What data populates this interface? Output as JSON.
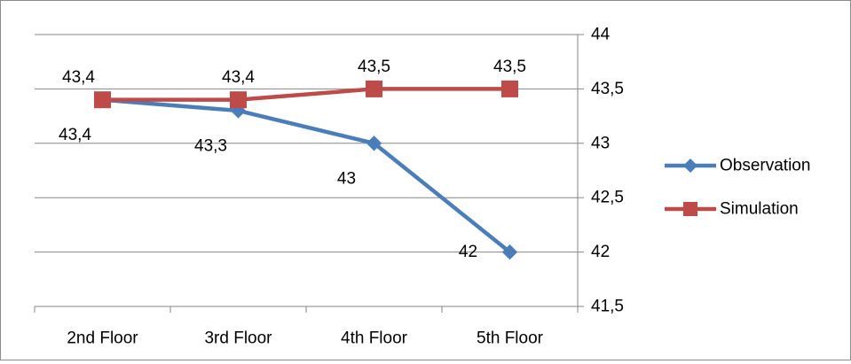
{
  "chart_data": {
    "type": "line",
    "categories": [
      "2nd Floor",
      "3rd Floor",
      "4th Floor",
      "5th Floor"
    ],
    "series": [
      {
        "name": "Observation",
        "values": [
          43.4,
          43.3,
          43,
          42
        ],
        "labels": [
          "43,4",
          "43,3",
          "43",
          "42"
        ],
        "color": "#4a7ebb",
        "marker": "diamond"
      },
      {
        "name": "Simulation",
        "values": [
          43.4,
          43.4,
          43.5,
          43.5
        ],
        "labels": [
          "43,4",
          "43,4",
          "43,5",
          "43,5"
        ],
        "color": "#be4b48",
        "marker": "square"
      }
    ],
    "y_axis": {
      "position": "right",
      "min": 41.5,
      "max": 44,
      "ticks": [
        {
          "value": 44,
          "label": "44"
        },
        {
          "value": 43.5,
          "label": "43,5"
        },
        {
          "value": 43,
          "label": "43"
        },
        {
          "value": 42.5,
          "label": "42,5"
        },
        {
          "value": 42,
          "label": "42"
        },
        {
          "value": 41.5,
          "label": "41,5"
        }
      ]
    },
    "grid": true,
    "legend": "right",
    "title": "",
    "xlabel": "",
    "ylabel": ""
  }
}
